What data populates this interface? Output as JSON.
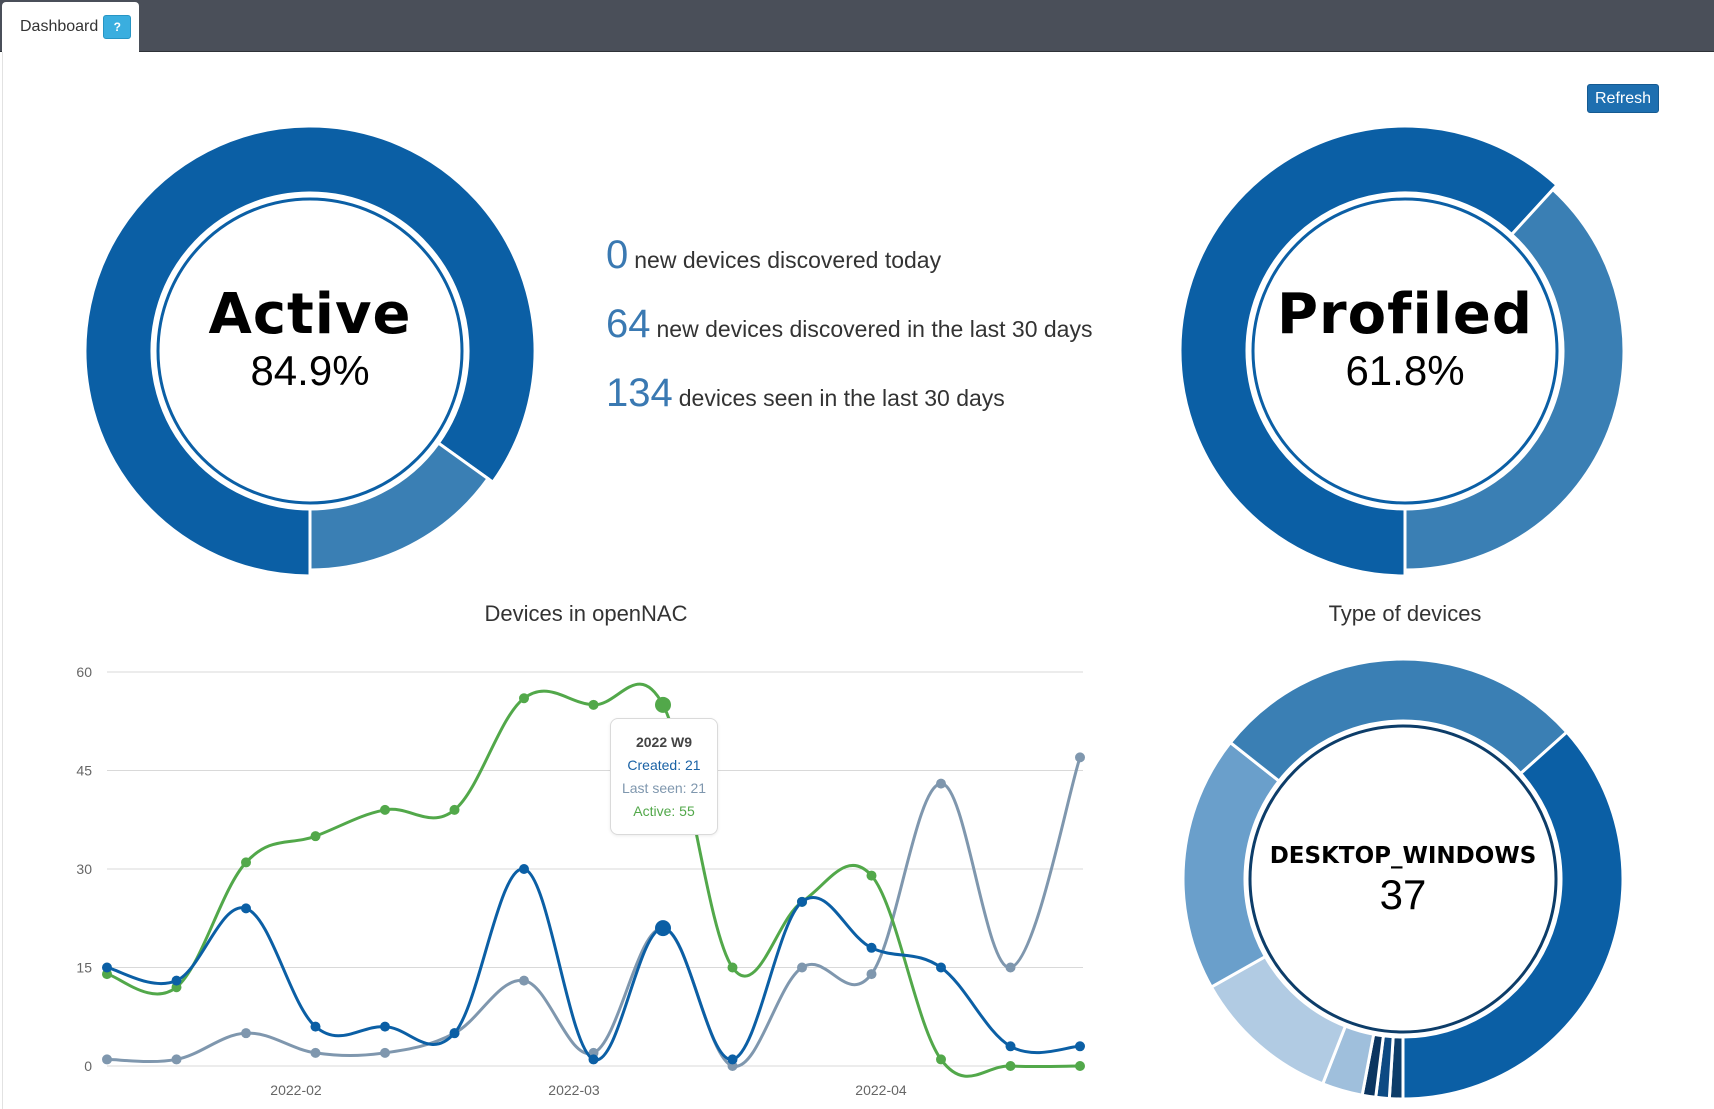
{
  "tab": {
    "label": "Dashboard",
    "help_label": "?"
  },
  "toolbar": {
    "refresh_label": "Refresh"
  },
  "active_donut": {
    "title": "Active",
    "value_text": "84.9%",
    "fraction": 0.849
  },
  "profiled_donut": {
    "title": "Profiled",
    "value_text": "61.8%",
    "fraction": 0.618
  },
  "stats": [
    {
      "value": "0",
      "text": "new devices discovered today"
    },
    {
      "value": "64",
      "text": "new devices discovered in the last 30 days"
    },
    {
      "value": "134",
      "text": "devices seen in the last 30 days"
    }
  ],
  "colors": {
    "dark_blue": "#0b5fa5",
    "mid_blue": "#3a7fb4",
    "navy": "#0d3d69",
    "green": "#52a84a",
    "gray": "#7f97ae"
  },
  "chart_data": [
    {
      "type": "line",
      "title": "Devices in openNAC",
      "ylim": [
        0,
        60
      ],
      "yticks": [
        0,
        15,
        30,
        45,
        60
      ],
      "x_tick_labels": [
        "2022-02",
        "2022-03",
        "2022-04"
      ],
      "grid": true,
      "series": [
        {
          "name": "Created",
          "values": [
            15,
            13,
            24,
            6,
            6,
            5,
            30,
            1,
            21,
            1,
            25,
            18,
            15,
            3,
            3
          ]
        },
        {
          "name": "Last seen",
          "values": [
            1,
            1,
            5,
            2,
            2,
            5,
            13,
            2,
            21,
            0,
            15,
            14,
            43,
            15,
            47
          ]
        },
        {
          "name": "Active",
          "values": [
            14,
            12,
            31,
            35,
            39,
            39,
            56,
            55,
            55,
            15,
            25,
            29,
            1,
            0,
            0
          ]
        }
      ],
      "tooltip": {
        "title": "2022 W9",
        "lines": [
          "Created: 21",
          "Last seen: 21",
          "Active: 55"
        ]
      }
    },
    {
      "type": "pie",
      "title": "Type of devices",
      "center_label": "DESKTOP_WINDOWS",
      "center_value": "37",
      "values": [
        37,
        28,
        19,
        11,
        3,
        1,
        1,
        1
      ]
    }
  ]
}
